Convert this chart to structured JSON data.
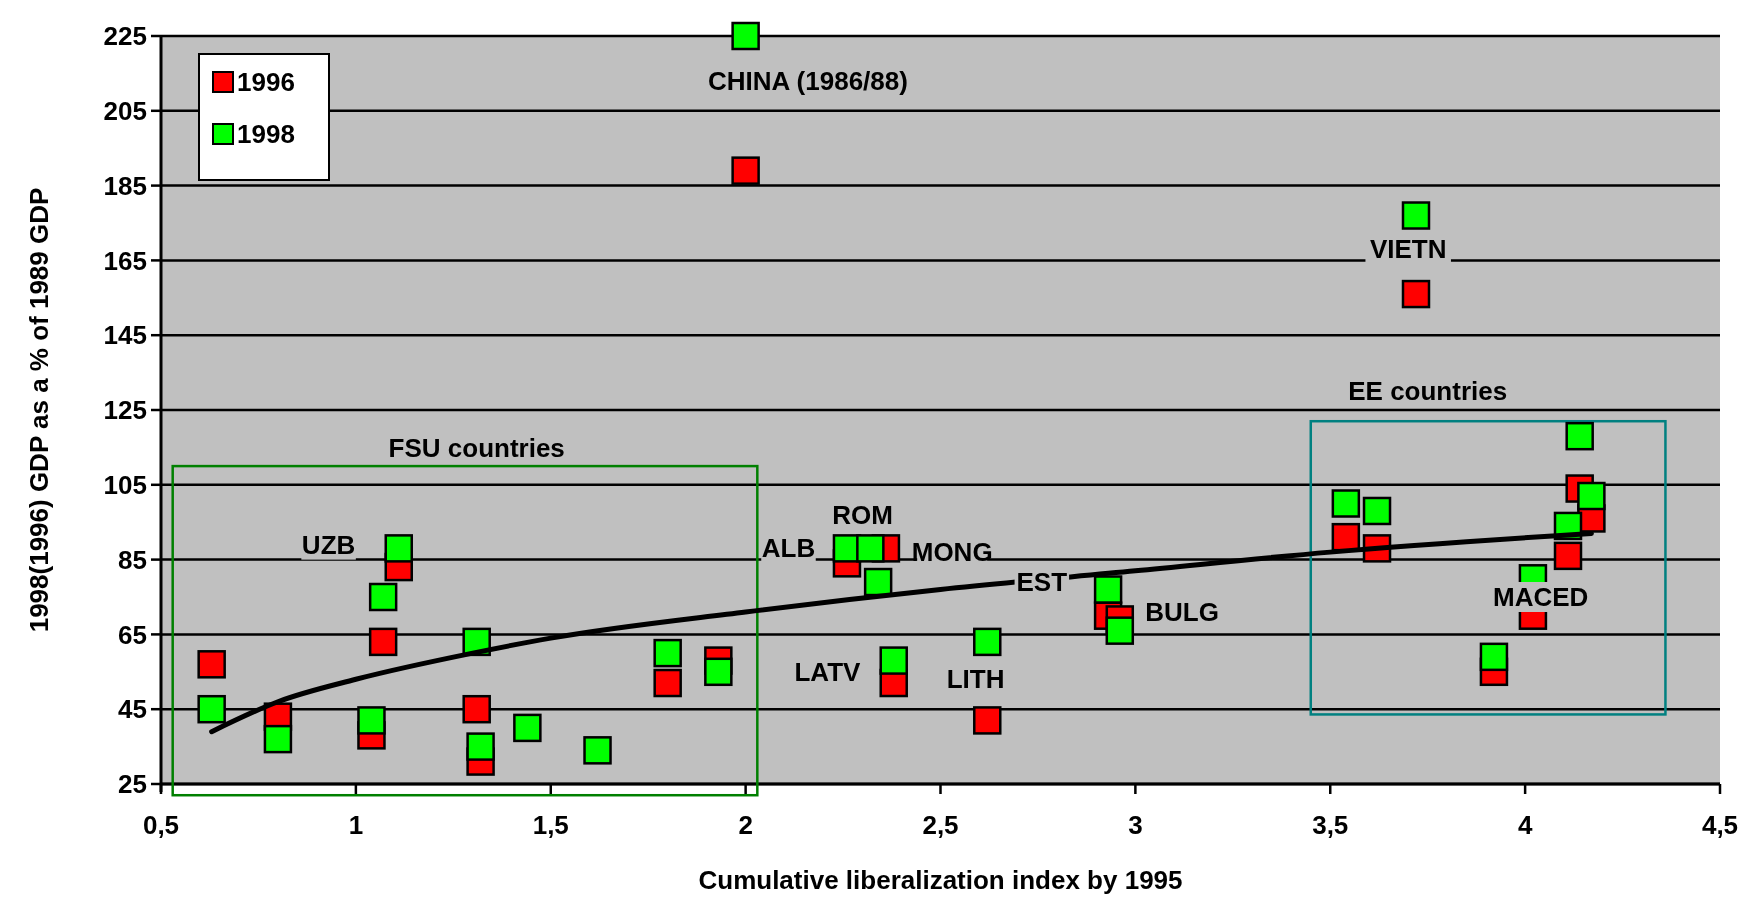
{
  "chart_data": {
    "type": "scatter",
    "xlabel": "Cumulative liberalization index by 1995",
    "ylabel": "1998(1996) GDP as a % of 1989 GDP",
    "xlim": [
      0.5,
      4.5
    ],
    "xticks": [
      {
        "value": 0.5,
        "label": "0,5"
      },
      1,
      {
        "value": 1.5,
        "label": "1,5"
      },
      2,
      {
        "value": 2.5,
        "label": "2,5"
      },
      3,
      {
        "value": 3.5,
        "label": "3,5"
      },
      4,
      {
        "value": 4.5,
        "label": "4,5"
      }
    ],
    "ylim": [
      25,
      225
    ],
    "yticks": [
      25,
      45,
      65,
      85,
      105,
      125,
      145,
      165,
      185,
      205,
      225
    ],
    "grid": "y",
    "legend": "top left",
    "marker": "square",
    "series": [
      {
        "name": "1996",
        "color": "#ff0000",
        "x": [
          0.63,
          0.8,
          1.04,
          1.07,
          1.11,
          1.31,
          1.32,
          1.8,
          1.93,
          2.0,
          2.26,
          2.36,
          2.38,
          2.62,
          2.93,
          2.96,
          3.54,
          3.62,
          3.72,
          3.92,
          4.02,
          4.11,
          4.14,
          4.17
        ],
        "values": [
          57,
          43,
          38,
          63,
          83,
          45,
          31,
          52,
          58,
          189,
          84,
          88,
          52,
          42,
          70,
          69,
          91,
          88,
          156,
          55,
          70,
          86,
          104,
          96
        ]
      },
      {
        "name": "1998",
        "color": "#00ff00",
        "x": [
          0.63,
          0.8,
          1.04,
          1.07,
          1.11,
          1.31,
          1.32,
          1.44,
          1.62,
          1.8,
          1.93,
          2.0,
          2.26,
          2.32,
          2.34,
          2.38,
          2.62,
          2.93,
          2.96,
          3.54,
          3.62,
          3.72,
          3.92,
          4.02,
          4.11,
          4.14,
          4.17
        ],
        "values": [
          45,
          37,
          42,
          75,
          88,
          63,
          35,
          40,
          34,
          60,
          55,
          225,
          88,
          88,
          79,
          58,
          63,
          77,
          66,
          100,
          98,
          177,
          59,
          80,
          94,
          118,
          102
        ]
      },
      {
        "type": "line",
        "color": "#000000",
        "marker": "none",
        "x": [
          0.63,
          0.8,
          1.0,
          1.3,
          1.5,
          2.0,
          2.5,
          3.0,
          3.5,
          4.17
        ],
        "values": [
          39,
          47,
          53,
          60,
          64,
          71,
          77,
          82,
          87,
          92
        ]
      }
    ],
    "annotations": [
      "CHINA (1986/88)",
      "VIETN",
      "UZB",
      "ROM",
      "ALB",
      "MONG",
      "EST",
      "BULG",
      "LATV",
      "LITH",
      "MACED",
      "FSU countries",
      "EE countries"
    ]
  }
}
